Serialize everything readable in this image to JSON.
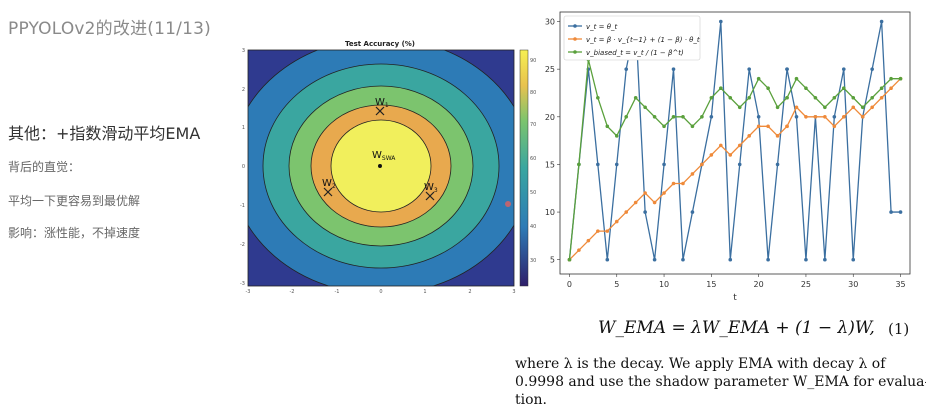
{
  "slide": {
    "title": "PPYOLOv2的改进(11/13)",
    "heading": "其他：+指数滑动平均EMA",
    "bullets": [
      "背后的直觉：",
      "平均一下更容易到最优解",
      "影响：涨性能，不掉速度"
    ]
  },
  "contour": {
    "title": "Test Accuracy (%)",
    "xticks": [
      "-3",
      "-2",
      "-1",
      "0",
      "1",
      "2",
      "3"
    ],
    "yticks": [
      "3",
      "2",
      "1",
      "0",
      "-1",
      "-2",
      "-3"
    ],
    "colorbar_ticks": [
      "90",
      "80",
      "70",
      "60",
      "50",
      "40",
      "30"
    ],
    "labels": {
      "w1": "W",
      "w1_sub": "1",
      "w2": "W",
      "w2_sub": "2",
      "w3": "W",
      "w3_sub": "3",
      "swa": "W",
      "swa_sub": "SWA"
    },
    "colors": [
      "#2f3a8f",
      "#2d7bb6",
      "#3aa6a0",
      "#7cc46e",
      "#e8a94e",
      "#f1ef5c"
    ]
  },
  "chart_data": {
    "type": "line",
    "xlabel": "t",
    "xlim": [
      -1,
      36
    ],
    "ylim": [
      27,
      31
    ],
    "xticks": [
      0,
      5,
      10,
      15,
      20,
      25,
      30,
      35
    ],
    "yticks": [
      5,
      10,
      15,
      20,
      25,
      30
    ],
    "x": [
      0,
      1,
      2,
      3,
      4,
      5,
      6,
      7,
      8,
      9,
      10,
      11,
      12,
      13,
      14,
      15,
      16,
      17,
      18,
      19,
      20,
      21,
      22,
      23,
      23,
      24,
      25,
      26,
      27,
      28,
      29,
      30,
      31,
      32,
      33,
      34,
      35
    ],
    "legend_placement": "top-left",
    "series": [
      {
        "name": "v_t = θ_t",
        "color": "#3b6fa0",
        "values": [
          5,
          15,
          25,
          15,
          5,
          15,
          25,
          30,
          10,
          5,
          15,
          25,
          5,
          10,
          15,
          20,
          30,
          5,
          15,
          25,
          20,
          5,
          15,
          25,
          25,
          20,
          5,
          20,
          5,
          20,
          25,
          5,
          20,
          25,
          30,
          10,
          10
        ]
      },
      {
        "name": "v_t = β · v_{t−1} + (1 − β) · θ_t",
        "color": "#ef8a3a",
        "values": [
          5,
          6,
          7,
          8,
          8,
          9,
          10,
          11,
          12,
          11,
          12,
          13,
          13,
          14,
          15,
          16,
          17,
          16,
          17,
          18,
          19,
          19,
          18,
          19,
          19,
          21,
          20,
          20,
          20,
          19,
          20,
          21,
          20,
          21,
          22,
          23,
          24
        ]
      },
      {
        "name": "v_biased_t = v_t / (1 − β^t)",
        "color": "#5aa03c",
        "values": [
          5,
          15,
          26,
          22,
          19,
          18,
          20,
          22,
          21,
          20,
          19,
          20,
          20,
          19,
          20,
          22,
          23,
          22,
          21,
          22,
          24,
          23,
          21,
          22,
          22,
          24,
          23,
          22,
          21,
          22,
          23,
          22,
          21,
          22,
          23,
          24,
          24
        ]
      }
    ]
  },
  "formula": {
    "text": "W_EMA = λW_EMA + (1 − λ)W,",
    "number": "(1)"
  },
  "paper": {
    "lines": [
      "where λ is the decay.  We apply EMA with decay λ of",
      "0.9998 and use the shadow parameter W_EMA for evalua-",
      "tion."
    ]
  }
}
